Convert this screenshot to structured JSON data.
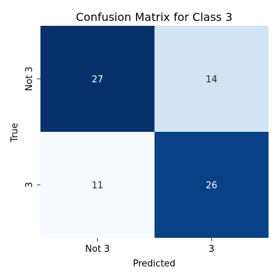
{
  "chart_data": {
    "type": "heatmap",
    "title": "Confusion Matrix for Class 3",
    "xlabel": "Predicted",
    "ylabel": "True",
    "x_categories": [
      "Not 3",
      "3"
    ],
    "y_categories": [
      "Not 3",
      "3"
    ],
    "values": [
      [
        27,
        14
      ],
      [
        11,
        26
      ]
    ],
    "colormap": "Blues",
    "value_range": [
      11,
      27
    ],
    "colorbar": false,
    "colors": {
      "high": "#08306b",
      "low": "#f7fbff",
      "text_on_dark": "#ffffff",
      "text_on_light": "#262626"
    }
  }
}
